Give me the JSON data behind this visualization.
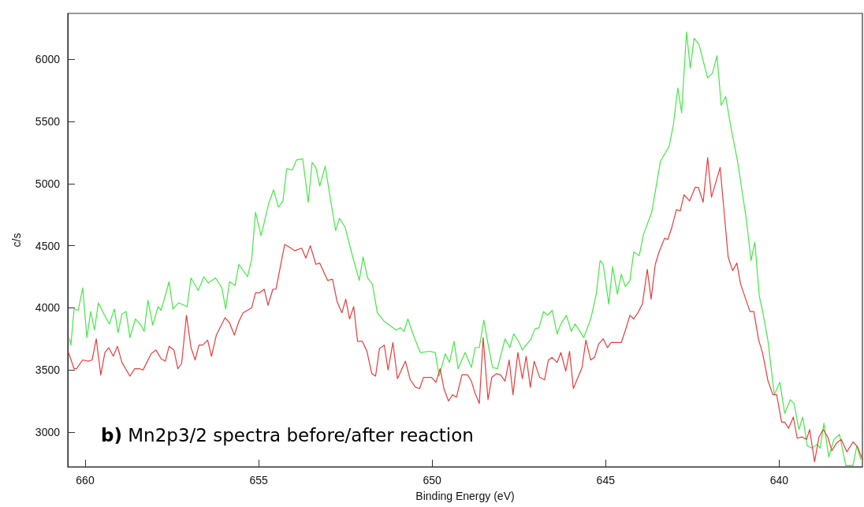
{
  "chart_data": {
    "type": "line",
    "xlabel": "Binding Energy (eV)",
    "ylabel": "c/s",
    "annotations": [
      "b) Mn2p3/2 spectra before/after reaction"
    ],
    "xlim": [
      660.5,
      637.6
    ],
    "xticks": [
      660,
      655,
      650,
      645,
      640
    ],
    "ylim": [
      2720,
      6370
    ],
    "yticks": [
      3000,
      3500,
      4000,
      4500,
      5000,
      5500,
      6000
    ],
    "grid": false,
    "marker": "none",
    "line_style": "solid",
    "series": [
      {
        "color": "#44e844",
        "x": [
          660.45,
          660.41,
          660.32,
          660.2,
          660.07,
          659.95,
          659.84,
          659.73,
          659.62,
          659.46,
          659.3,
          659.16,
          659.05,
          658.94,
          658.82,
          658.71,
          658.55,
          658.39,
          658.3,
          658.19,
          658.05,
          657.9,
          657.81,
          657.58,
          657.47,
          657.31,
          657.06,
          656.95,
          656.74,
          656.58,
          656.45,
          656.24,
          656.06,
          655.95,
          655.84,
          655.68,
          655.57,
          655.32,
          655.2,
          655.09,
          654.93,
          654.71,
          654.57,
          654.43,
          654.3,
          654.19,
          654.03,
          653.91,
          653.73,
          653.57,
          653.46,
          653.35,
          653.24,
          653.08,
          652.94,
          652.78,
          652.67,
          652.51,
          652.29,
          652.1,
          651.99,
          651.86,
          651.72,
          651.58,
          651.38,
          651.22,
          651.04,
          650.91,
          650.81,
          650.7,
          650.5,
          650.34,
          650.07,
          649.91,
          649.8,
          649.62,
          649.5,
          649.37,
          649.25,
          649.05,
          648.87,
          648.76,
          648.64,
          648.51,
          648.39,
          648.26,
          648.12,
          647.9,
          647.76,
          647.65,
          647.49,
          647.4,
          647.15,
          647.04,
          646.92,
          646.79,
          646.67,
          646.54,
          646.4,
          646.29,
          646.13,
          645.99,
          645.88,
          645.63,
          645.43,
          645.27,
          645.16,
          645.07,
          644.91,
          644.8,
          644.66,
          644.55,
          644.43,
          644.3,
          644.19,
          644.03,
          643.91,
          643.67,
          643.42,
          643.17,
          643.05,
          642.92,
          642.81,
          642.67,
          642.56,
          642.45,
          642.31,
          642.06,
          641.92,
          641.79,
          641.67,
          641.54,
          641.4,
          641.2,
          641.09,
          640.95,
          640.81,
          640.7,
          640.57,
          640.48,
          640.32,
          640.14,
          639.98,
          639.84,
          639.68,
          639.57,
          639.43,
          639.32,
          639.19,
          639.05,
          638.91,
          638.82,
          638.71,
          638.57,
          638.42,
          638.26,
          638.08,
          637.87,
          637.76,
          637.65
        ],
        "values": [
          3750,
          3700,
          3990,
          3980,
          4160,
          3760,
          3970,
          3820,
          4040,
          3950,
          3870,
          3990,
          3800,
          3950,
          3970,
          3760,
          3910,
          3860,
          3810,
          4060,
          3860,
          4010,
          3980,
          4210,
          3990,
          4040,
          4010,
          4240,
          4140,
          4250,
          4200,
          4240,
          4160,
          3990,
          4210,
          4180,
          4350,
          4250,
          4390,
          4770,
          4580,
          4840,
          4950,
          4810,
          4860,
          5120,
          5110,
          5190,
          5200,
          4850,
          5170,
          5130,
          4980,
          5140,
          4890,
          4620,
          4720,
          4650,
          4410,
          4220,
          4410,
          4240,
          4190,
          3960,
          3890,
          3860,
          3820,
          3840,
          3810,
          3910,
          3750,
          3640,
          3650,
          3640,
          3450,
          3630,
          3560,
          3730,
          3510,
          3640,
          3520,
          3680,
          3680,
          3900,
          3710,
          3520,
          3510,
          3750,
          3680,
          3790,
          3720,
          3660,
          3750,
          3830,
          3840,
          3970,
          3940,
          3980,
          3790,
          3870,
          3940,
          3810,
          3870,
          3760,
          3910,
          4110,
          4380,
          4350,
          4030,
          4330,
          4110,
          4270,
          4170,
          4220,
          4450,
          4420,
          4590,
          4770,
          5180,
          5300,
          5470,
          5770,
          5570,
          6220,
          5930,
          6170,
          6120,
          5850,
          5890,
          6030,
          5630,
          5700,
          5470,
          5180,
          4980,
          4720,
          4380,
          4530,
          4090,
          3980,
          3730,
          3300,
          3400,
          3150,
          3260,
          3230,
          3020,
          3120,
          2890,
          2870,
          2900,
          2870,
          3070,
          2800,
          2940,
          2980,
          2730,
          2730,
          2890,
          2780
        ]
      },
      {
        "color": "#e83c3c",
        "x": [
          660.48,
          660.32,
          660.25,
          660.07,
          659.91,
          659.8,
          659.68,
          659.55,
          659.43,
          659.32,
          659.19,
          659.07,
          658.94,
          658.71,
          658.57,
          658.44,
          658.33,
          658.1,
          657.96,
          657.81,
          657.69,
          657.58,
          657.44,
          657.33,
          657.22,
          657.08,
          656.95,
          656.83,
          656.72,
          656.61,
          656.47,
          656.36,
          656.22,
          655.97,
          655.84,
          655.7,
          655.57,
          655.45,
          655.32,
          655.2,
          655.09,
          654.98,
          654.84,
          654.73,
          654.59,
          654.5,
          654.25,
          654.12,
          653.96,
          653.76,
          653.64,
          653.51,
          653.35,
          653.24,
          653.01,
          652.87,
          652.74,
          652.6,
          652.49,
          652.38,
          652.26,
          652.15,
          652.01,
          651.88,
          651.74,
          651.63,
          651.52,
          651.38,
          651.27,
          651.13,
          651.0,
          650.77,
          650.63,
          650.48,
          650.36,
          650.25,
          650.14,
          650.02,
          649.89,
          649.77,
          649.66,
          649.53,
          649.41,
          649.3,
          649.14,
          648.98,
          648.87,
          648.76,
          648.64,
          648.53,
          648.39,
          648.28,
          648.14,
          648.03,
          647.9,
          647.78,
          647.67,
          647.53,
          647.4,
          647.29,
          647.17,
          647.06,
          646.9,
          646.76,
          646.65,
          646.54,
          646.4,
          646.29,
          646.15,
          646.04,
          645.93,
          645.68,
          645.57,
          645.43,
          645.32,
          645.2,
          645.07,
          644.95,
          644.84,
          644.66,
          644.55,
          644.43,
          644.3,
          644.19,
          644.07,
          643.94,
          643.8,
          643.69,
          643.57,
          643.46,
          643.3,
          643.21,
          643.1,
          642.96,
          642.85,
          642.74,
          642.58,
          642.42,
          642.33,
          642.19,
          642.06,
          641.95,
          641.7,
          641.47,
          641.34,
          641.22,
          641.11,
          640.84,
          640.73,
          640.59,
          640.48,
          640.32,
          640.18,
          640.07,
          639.93,
          639.84,
          639.73,
          639.59,
          639.48,
          639.34,
          639.21,
          639.12,
          638.98,
          638.85,
          638.73,
          638.6,
          638.48,
          638.35,
          638.21,
          638.05,
          637.87,
          637.74,
          637.6
        ],
        "values": [
          3640,
          3510,
          3510,
          3580,
          3570,
          3580,
          3750,
          3460,
          3640,
          3680,
          3610,
          3690,
          3560,
          3450,
          3510,
          3510,
          3500,
          3630,
          3660,
          3590,
          3570,
          3690,
          3660,
          3510,
          3550,
          3940,
          3680,
          3580,
          3700,
          3700,
          3740,
          3610,
          3780,
          3920,
          3880,
          3780,
          3890,
          3960,
          3980,
          4000,
          4120,
          4120,
          4150,
          4020,
          4150,
          4150,
          4510,
          4490,
          4460,
          4480,
          4400,
          4500,
          4350,
          4360,
          4220,
          4230,
          4050,
          3960,
          4070,
          3910,
          4010,
          3730,
          3730,
          3650,
          3470,
          3450,
          3670,
          3700,
          3500,
          3720,
          3430,
          3570,
          3420,
          3360,
          3350,
          3440,
          3440,
          3440,
          3400,
          3510,
          3350,
          3250,
          3300,
          3280,
          3460,
          3460,
          3410,
          3310,
          3230,
          3760,
          3260,
          3440,
          3470,
          3460,
          3410,
          3580,
          3300,
          3640,
          3430,
          3610,
          3360,
          3570,
          3440,
          3420,
          3580,
          3600,
          3560,
          3640,
          3490,
          3650,
          3350,
          3520,
          3740,
          3580,
          3600,
          3710,
          3750,
          3680,
          3720,
          3720,
          3720,
          3820,
          3940,
          3910,
          3960,
          4030,
          4310,
          4070,
          4350,
          4450,
          4560,
          4550,
          4640,
          4790,
          4780,
          4910,
          4860,
          4970,
          4970,
          4850,
          5210,
          4890,
          5130,
          4410,
          4300,
          4360,
          4190,
          3970,
          3970,
          3740,
          3640,
          3410,
          3300,
          3300,
          3080,
          3080,
          3030,
          3120,
          2950,
          2960,
          2940,
          3020,
          2760,
          2960,
          3020,
          2960,
          2850,
          2910,
          2940,
          2840,
          2920,
          2880,
          2780
        ]
      }
    ]
  }
}
